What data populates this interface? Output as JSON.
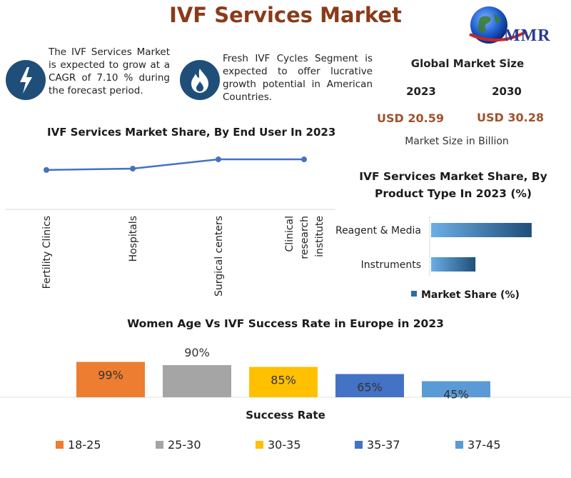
{
  "title": "IVF Services Market",
  "logo": {
    "text": "MMR"
  },
  "callouts": [
    {
      "icon": "lightning-icon",
      "text": "The IVF Services Market is expected to grow at a CAGR of 7.10 % during the forecast period."
    },
    {
      "icon": "flame-icon",
      "text": "Fresh IVF Cycles Segment is expected to offer lucrative growth potential in American Countries."
    }
  ],
  "global_market": {
    "heading": "Global Market Size",
    "years": [
      "2023",
      "2030"
    ],
    "values": [
      "USD 20.59",
      "USD 30.28"
    ],
    "note": "Market Size in Billion"
  },
  "colors": {
    "title": "#8b3a1a",
    "value": "#a0522d",
    "line": "#4472c4",
    "icon_bg": "#1f4e79"
  },
  "chart_data": [
    {
      "type": "line",
      "title": "IVF Services Market Share, By End User In 2023",
      "categories": [
        "Fertility Clinics",
        "Hospitals",
        "Surgical centers",
        "Clinical research institute"
      ],
      "series": [
        {
          "values": [
            20,
            21,
            28,
            28
          ]
        }
      ],
      "ylim": [
        0,
        40
      ],
      "grid": false
    },
    {
      "type": "bar",
      "orientation": "horizontal",
      "title": "IVF Services Market Share, By Product Type In 2023 (%)",
      "categories": [
        "Reagent & Media",
        "Instruments"
      ],
      "series": [
        {
          "name": "Market Share (%)",
          "values": [
            68,
            30
          ]
        }
      ],
      "xlim": [
        0,
        70
      ],
      "legend": "bottom"
    },
    {
      "type": "bar",
      "title": "Women Age Vs IVF Success Rate in Europe in 2023",
      "xlabel": "Success Rate",
      "categories": [
        "18-25",
        "25-30",
        "30-35",
        "35-37",
        "37-45"
      ],
      "values": [
        99,
        90,
        85,
        65,
        45
      ],
      "labels": [
        "99%",
        "90%",
        "85%",
        "65%",
        "45%"
      ],
      "colors": [
        "#ed7d31",
        "#a5a5a5",
        "#ffc000",
        "#4472c4",
        "#5b9bd5"
      ],
      "legend": "bottom"
    }
  ]
}
